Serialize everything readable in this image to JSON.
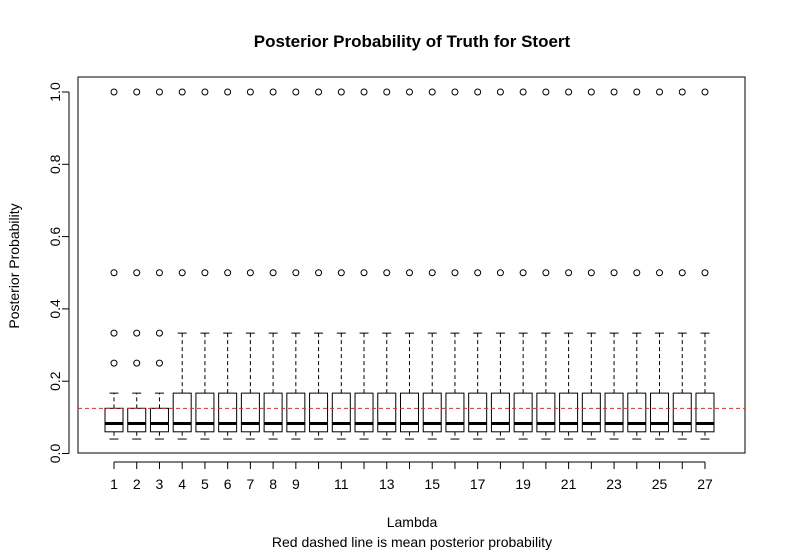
{
  "chart_data": {
    "type": "box",
    "title": "Posterior Probability of Truth for Stoert",
    "xlabel": "Lambda",
    "subtitle": "Red dashed line is mean posterior probability",
    "ylabel": "Posterior Probability",
    "ylim": [
      0,
      1.0
    ],
    "yticks": [
      "0.0",
      "0.2",
      "0.4",
      "0.6",
      "0.8",
      "1.0"
    ],
    "categories": [
      1,
      2,
      3,
      4,
      5,
      6,
      7,
      8,
      9,
      10,
      11,
      12,
      13,
      14,
      15,
      16,
      17,
      18,
      19,
      20,
      21,
      22,
      23,
      24,
      25,
      26,
      27
    ],
    "xtick_labels": [
      "1",
      "2",
      "3",
      "4",
      "5",
      "6",
      "7",
      "8",
      "9",
      "",
      "11",
      "",
      "13",
      "",
      "15",
      "",
      "17",
      "",
      "19",
      "",
      "21",
      "",
      "23",
      "",
      "25",
      "",
      "27"
    ],
    "mean_line": {
      "value": 0.125,
      "color": "#cc3333",
      "style": "dashed"
    },
    "boxes": [
      {
        "x": 1,
        "whisker_low": 0.04,
        "q1": 0.06,
        "median": 0.083,
        "q3": 0.125,
        "whisker_high": 0.167,
        "outliers": [
          0.25,
          0.333,
          0.5,
          1.0
        ]
      },
      {
        "x": 2,
        "whisker_low": 0.04,
        "q1": 0.06,
        "median": 0.083,
        "q3": 0.125,
        "whisker_high": 0.167,
        "outliers": [
          0.25,
          0.333,
          0.5,
          1.0
        ]
      },
      {
        "x": 3,
        "whisker_low": 0.04,
        "q1": 0.06,
        "median": 0.083,
        "q3": 0.125,
        "whisker_high": 0.167,
        "outliers": [
          0.25,
          0.333,
          0.5,
          1.0
        ]
      },
      {
        "x": 4,
        "whisker_low": 0.04,
        "q1": 0.06,
        "median": 0.083,
        "q3": 0.167,
        "whisker_high": 0.333,
        "outliers": [
          0.5,
          1.0
        ]
      },
      {
        "x": 5,
        "whisker_low": 0.04,
        "q1": 0.06,
        "median": 0.083,
        "q3": 0.167,
        "whisker_high": 0.333,
        "outliers": [
          0.5,
          1.0
        ]
      },
      {
        "x": 6,
        "whisker_low": 0.04,
        "q1": 0.06,
        "median": 0.083,
        "q3": 0.167,
        "whisker_high": 0.333,
        "outliers": [
          0.5,
          1.0
        ]
      },
      {
        "x": 7,
        "whisker_low": 0.04,
        "q1": 0.06,
        "median": 0.083,
        "q3": 0.167,
        "whisker_high": 0.333,
        "outliers": [
          0.5,
          1.0
        ]
      },
      {
        "x": 8,
        "whisker_low": 0.04,
        "q1": 0.06,
        "median": 0.083,
        "q3": 0.167,
        "whisker_high": 0.333,
        "outliers": [
          0.5,
          1.0
        ]
      },
      {
        "x": 9,
        "whisker_low": 0.04,
        "q1": 0.06,
        "median": 0.083,
        "q3": 0.167,
        "whisker_high": 0.333,
        "outliers": [
          0.5,
          1.0
        ]
      },
      {
        "x": 10,
        "whisker_low": 0.04,
        "q1": 0.06,
        "median": 0.083,
        "q3": 0.167,
        "whisker_high": 0.333,
        "outliers": [
          0.5,
          1.0
        ]
      },
      {
        "x": 11,
        "whisker_low": 0.04,
        "q1": 0.06,
        "median": 0.083,
        "q3": 0.167,
        "whisker_high": 0.333,
        "outliers": [
          0.5,
          1.0
        ]
      },
      {
        "x": 12,
        "whisker_low": 0.04,
        "q1": 0.06,
        "median": 0.083,
        "q3": 0.167,
        "whisker_high": 0.333,
        "outliers": [
          0.5,
          1.0
        ]
      },
      {
        "x": 13,
        "whisker_low": 0.04,
        "q1": 0.06,
        "median": 0.083,
        "q3": 0.167,
        "whisker_high": 0.333,
        "outliers": [
          0.5,
          1.0
        ]
      },
      {
        "x": 14,
        "whisker_low": 0.04,
        "q1": 0.06,
        "median": 0.083,
        "q3": 0.167,
        "whisker_high": 0.333,
        "outliers": [
          0.5,
          1.0
        ]
      },
      {
        "x": 15,
        "whisker_low": 0.04,
        "q1": 0.06,
        "median": 0.083,
        "q3": 0.167,
        "whisker_high": 0.333,
        "outliers": [
          0.5,
          1.0
        ]
      },
      {
        "x": 16,
        "whisker_low": 0.04,
        "q1": 0.06,
        "median": 0.083,
        "q3": 0.167,
        "whisker_high": 0.333,
        "outliers": [
          0.5,
          1.0
        ]
      },
      {
        "x": 17,
        "whisker_low": 0.04,
        "q1": 0.06,
        "median": 0.083,
        "q3": 0.167,
        "whisker_high": 0.333,
        "outliers": [
          0.5,
          1.0
        ]
      },
      {
        "x": 18,
        "whisker_low": 0.04,
        "q1": 0.06,
        "median": 0.083,
        "q3": 0.167,
        "whisker_high": 0.333,
        "outliers": [
          0.5,
          1.0
        ]
      },
      {
        "x": 19,
        "whisker_low": 0.04,
        "q1": 0.06,
        "median": 0.083,
        "q3": 0.167,
        "whisker_high": 0.333,
        "outliers": [
          0.5,
          1.0
        ]
      },
      {
        "x": 20,
        "whisker_low": 0.04,
        "q1": 0.06,
        "median": 0.083,
        "q3": 0.167,
        "whisker_high": 0.333,
        "outliers": [
          0.5,
          1.0
        ]
      },
      {
        "x": 21,
        "whisker_low": 0.04,
        "q1": 0.06,
        "median": 0.083,
        "q3": 0.167,
        "whisker_high": 0.333,
        "outliers": [
          0.5,
          1.0
        ]
      },
      {
        "x": 22,
        "whisker_low": 0.04,
        "q1": 0.06,
        "median": 0.083,
        "q3": 0.167,
        "whisker_high": 0.333,
        "outliers": [
          0.5,
          1.0
        ]
      },
      {
        "x": 23,
        "whisker_low": 0.04,
        "q1": 0.06,
        "median": 0.083,
        "q3": 0.167,
        "whisker_high": 0.333,
        "outliers": [
          0.5,
          1.0
        ]
      },
      {
        "x": 24,
        "whisker_low": 0.04,
        "q1": 0.06,
        "median": 0.083,
        "q3": 0.167,
        "whisker_high": 0.333,
        "outliers": [
          0.5,
          1.0
        ]
      },
      {
        "x": 25,
        "whisker_low": 0.04,
        "q1": 0.06,
        "median": 0.083,
        "q3": 0.167,
        "whisker_high": 0.333,
        "outliers": [
          0.5,
          1.0
        ]
      },
      {
        "x": 26,
        "whisker_low": 0.04,
        "q1": 0.06,
        "median": 0.083,
        "q3": 0.167,
        "whisker_high": 0.333,
        "outliers": [
          0.5,
          1.0
        ]
      },
      {
        "x": 27,
        "whisker_low": 0.04,
        "q1": 0.06,
        "median": 0.083,
        "q3": 0.167,
        "whisker_high": 0.333,
        "outliers": [
          0.5,
          1.0
        ]
      }
    ],
    "grid": false
  }
}
